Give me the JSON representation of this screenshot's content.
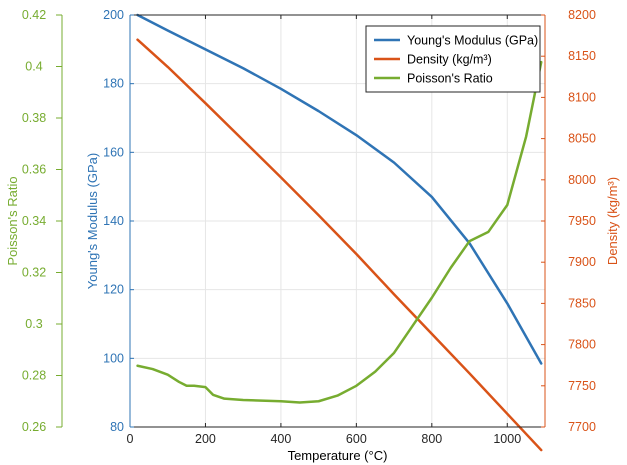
{
  "chart_data": {
    "type": "line",
    "title": "",
    "grid": true,
    "legend_position": "top-right",
    "x_axis": {
      "label": "Temperature (°C)",
      "range": [
        0,
        1100
      ],
      "ticks": [
        0,
        200,
        400,
        600,
        800,
        1000
      ],
      "color": "#000000"
    },
    "y_axes": [
      {
        "id": "modulus",
        "label": "Young's Modulus (GPa)",
        "range": [
          80,
          200
        ],
        "ticks": [
          80,
          100,
          120,
          140,
          160,
          180,
          200
        ],
        "tick_labels": [
          "80",
          "100",
          "120",
          "140",
          "160",
          "180",
          "200"
        ],
        "color": "#2f74b5",
        "side": "left"
      },
      {
        "id": "density",
        "label": "Density (kg/m³)",
        "range": [
          7700,
          8200
        ],
        "ticks": [
          7700,
          7750,
          7800,
          7850,
          7900,
          7950,
          8000,
          8050,
          8100,
          8150,
          8200
        ],
        "tick_labels": [
          "7700",
          "7750",
          "7800",
          "7850",
          "7900",
          "7950",
          "8000",
          "8050",
          "8100",
          "8150",
          "8200"
        ],
        "color": "#d95318",
        "side": "right"
      },
      {
        "id": "poisson",
        "label": "Poisson's Ratio",
        "range": [
          0.26,
          0.42
        ],
        "ticks": [
          0.26,
          0.28,
          0.3,
          0.32,
          0.34,
          0.36,
          0.38,
          0.4,
          0.42
        ],
        "tick_labels": [
          "0.26",
          "0.28",
          "0.3",
          "0.32",
          "0.34",
          "0.36",
          "0.38",
          "0.4",
          "0.42"
        ],
        "color": "#77ac30",
        "side": "far-left"
      }
    ],
    "series": [
      {
        "name": "Young's Modulus (GPa)",
        "axis": "modulus",
        "color": "#2f74b5",
        "x": [
          20,
          100,
          200,
          300,
          400,
          500,
          600,
          700,
          800,
          900,
          1000,
          1090
        ],
        "y": [
          200,
          195.5,
          190,
          184.5,
          178.5,
          172,
          165,
          157,
          147,
          133.5,
          116,
          98.5
        ]
      },
      {
        "name": "Density (kg/m³)",
        "axis": "density",
        "color": "#d95318",
        "x": [
          20,
          100,
          200,
          300,
          400,
          500,
          600,
          700,
          800,
          900,
          1000,
          1090
        ],
        "y": [
          8170,
          8137,
          8093,
          8048,
          8003,
          7957,
          7910,
          7861,
          7813,
          7765,
          7716,
          7672
        ]
      },
      {
        "name": "Poisson's Ratio",
        "axis": "poisson",
        "color": "#77ac30",
        "x": [
          20,
          60,
          100,
          130,
          150,
          170,
          200,
          220,
          250,
          300,
          400,
          450,
          500,
          550,
          600,
          650,
          700,
          750,
          800,
          850,
          900,
          950,
          1000,
          1050,
          1090
        ],
        "y": [
          0.2838,
          0.2825,
          0.2803,
          0.2775,
          0.276,
          0.276,
          0.2755,
          0.2725,
          0.271,
          0.2705,
          0.27,
          0.2695,
          0.27,
          0.2722,
          0.276,
          0.2815,
          0.2888,
          0.2995,
          0.3102,
          0.3218,
          0.3322,
          0.3358,
          0.3462,
          0.3728,
          0.4017
        ]
      }
    ]
  }
}
